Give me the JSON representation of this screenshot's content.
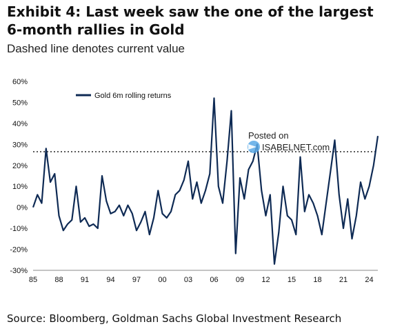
{
  "header": {
    "title_line1": "Exhibit 4: Last week saw the one of the largest",
    "title_line2": "6-month rallies in Gold",
    "subtitle": "Dashed line denotes current value"
  },
  "watermark": {
    "line1": "Posted on",
    "line2": "ISABELNET.com"
  },
  "footer": {
    "source": "Source: Bloomberg, Goldman Sachs Global Investment Research"
  },
  "chart_data": {
    "type": "line",
    "title": "",
    "xlabel": "",
    "ylabel": "",
    "ylim": [
      -30,
      60
    ],
    "yticks": [
      "60%",
      "50%",
      "40%",
      "30%",
      "20%",
      "10%",
      "0%",
      "-10%",
      "-20%",
      "-30%"
    ],
    "xticks": [
      "85",
      "88",
      "91",
      "94",
      "97",
      "00",
      "03",
      "06",
      "09",
      "12",
      "15",
      "18",
      "21",
      "24"
    ],
    "xlim": [
      1985,
      2025
    ],
    "legend": {
      "position": "top-left"
    },
    "grid": false,
    "reference_line": {
      "value": 26.5,
      "style": "dashed"
    },
    "series": [
      {
        "name": "Gold 6m rolling returns",
        "color": "#0e2a54",
        "x": [
          1985.0,
          1985.5,
          1986.0,
          1986.5,
          1987.0,
          1987.5,
          1988.0,
          1988.5,
          1989.0,
          1989.5,
          1990.0,
          1990.5,
          1991.0,
          1991.5,
          1992.0,
          1992.5,
          1993.0,
          1993.5,
          1994.0,
          1994.5,
          1995.0,
          1995.5,
          1996.0,
          1996.5,
          1997.0,
          1997.5,
          1998.0,
          1998.5,
          1999.0,
          1999.5,
          2000.0,
          2000.5,
          2001.0,
          2001.5,
          2002.0,
          2002.5,
          2003.0,
          2003.5,
          2004.0,
          2004.5,
          2005.0,
          2005.5,
          2006.0,
          2006.5,
          2007.0,
          2007.5,
          2008.0,
          2008.5,
          2009.0,
          2009.5,
          2010.0,
          2010.5,
          2011.0,
          2011.5,
          2012.0,
          2012.5,
          2013.0,
          2013.5,
          2014.0,
          2014.5,
          2015.0,
          2015.5,
          2016.0,
          2016.5,
          2017.0,
          2017.5,
          2018.0,
          2018.5,
          2019.0,
          2019.5,
          2020.0,
          2020.5,
          2021.0,
          2021.5,
          2022.0,
          2022.5,
          2023.0,
          2023.5,
          2024.0,
          2024.5,
          2025.0
        ],
        "values": [
          0,
          6,
          2,
          28,
          12,
          16,
          -4,
          -11,
          -8,
          -6,
          10,
          -7,
          -5,
          -9,
          -8,
          -10,
          15,
          3,
          -3,
          -2,
          1,
          -4,
          1,
          -3,
          -11,
          -7,
          -2,
          -13,
          -5,
          8,
          -3,
          -5,
          -2,
          6,
          8,
          13,
          22,
          4,
          12,
          2,
          8,
          16,
          52,
          10,
          2,
          22,
          46,
          -22,
          14,
          4,
          18,
          22,
          30,
          8,
          -4,
          6,
          -27,
          -12,
          10,
          -4,
          -6,
          -13,
          24,
          -2,
          6,
          2,
          -4,
          -13,
          2,
          17,
          32,
          6,
          -10,
          4,
          -15,
          -4,
          12,
          4,
          10,
          20,
          34
        ]
      }
    ]
  }
}
